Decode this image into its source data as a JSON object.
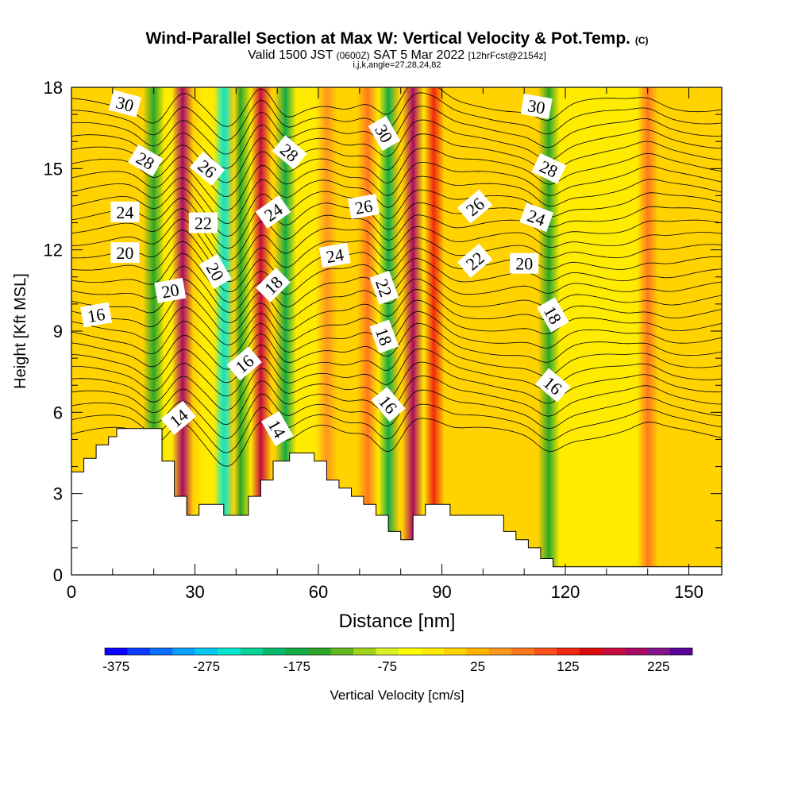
{
  "title": {
    "main": "Wind-Parallel Section at Max W: Vertical Velocity & Pot.Temp.",
    "copyright": "(C)",
    "valid_prefix": "Valid 1500 JST",
    "valid_utc": "(0600Z)",
    "valid_date": "SAT 5 Mar 2022",
    "forecast": "[12hrFcst@2154z]",
    "indices": "i,j,k,angle=27,28,24,82"
  },
  "chart_data": {
    "type": "heatmap",
    "xlabel": "Distance [nm]",
    "ylabel": "Height [Kft MSL]",
    "xlim": [
      0,
      158
    ],
    "ylim": [
      0,
      18
    ],
    "x_ticks": [
      0,
      30,
      60,
      90,
      120,
      150
    ],
    "y_ticks": [
      0,
      3,
      6,
      9,
      12,
      15,
      18
    ],
    "colorbar": {
      "label": "Vertical Velocity [cm/s]",
      "tick_labels": [
        "-375",
        "-275",
        "-175",
        "-75",
        "25",
        "125",
        "225"
      ],
      "colors": [
        "#0a00ff",
        "#0a3cff",
        "#0a6eff",
        "#0aa0ff",
        "#08c8f0",
        "#08e6d2",
        "#08d296",
        "#0ab96e",
        "#14aa46",
        "#2ba52a",
        "#64b41e",
        "#a0d21e",
        "#dcf028",
        "#ffff00",
        "#ffeb00",
        "#ffd200",
        "#ffb400",
        "#ff961e",
        "#ff781e",
        "#ff501e",
        "#f0280f",
        "#dc0a0a",
        "#c80a3c",
        "#aa0a64",
        "#82148c",
        "#5a0096"
      ]
    },
    "vertical_velocity_bands": [
      {
        "x": 20,
        "value": -150
      },
      {
        "x": 27,
        "value": 200
      },
      {
        "x": 32,
        "value": -20
      },
      {
        "x": 37,
        "value": -260
      },
      {
        "x": 41,
        "value": -160
      },
      {
        "x": 46,
        "value": 180
      },
      {
        "x": 52,
        "value": -170
      },
      {
        "x": 62,
        "value": 60
      },
      {
        "x": 72,
        "value": 75
      },
      {
        "x": 77,
        "value": -170
      },
      {
        "x": 83,
        "value": 200
      },
      {
        "x": 88,
        "value": 130
      },
      {
        "x": 116,
        "value": -150
      },
      {
        "x": 140,
        "value": 70
      }
    ],
    "terrain": [
      [
        0,
        3.8
      ],
      [
        3,
        3.8
      ],
      [
        3,
        4.3
      ],
      [
        6,
        4.3
      ],
      [
        6,
        4.8
      ],
      [
        9,
        4.8
      ],
      [
        9,
        5.1
      ],
      [
        11,
        5.1
      ],
      [
        11,
        5.4
      ],
      [
        22,
        5.4
      ],
      [
        22,
        4.2
      ],
      [
        25,
        4.2
      ],
      [
        25,
        2.9
      ],
      [
        28,
        2.9
      ],
      [
        28,
        2.2
      ],
      [
        31,
        2.2
      ],
      [
        31,
        2.6
      ],
      [
        37,
        2.6
      ],
      [
        37,
        2.2
      ],
      [
        43,
        2.2
      ],
      [
        43,
        2.9
      ],
      [
        46,
        2.9
      ],
      [
        46,
        3.5
      ],
      [
        49,
        3.5
      ],
      [
        49,
        4.2
      ],
      [
        53,
        4.2
      ],
      [
        53,
        4.5
      ],
      [
        59,
        4.5
      ],
      [
        59,
        4.2
      ],
      [
        62,
        4.2
      ],
      [
        62,
        3.5
      ],
      [
        65,
        3.5
      ],
      [
        65,
        3.2
      ],
      [
        68,
        3.2
      ],
      [
        68,
        2.9
      ],
      [
        71,
        2.9
      ],
      [
        71,
        2.6
      ],
      [
        74,
        2.6
      ],
      [
        74,
        2.2
      ],
      [
        77,
        2.2
      ],
      [
        77,
        1.6
      ],
      [
        80,
        1.6
      ],
      [
        80,
        1.3
      ],
      [
        83,
        1.3
      ],
      [
        83,
        2.2
      ],
      [
        86,
        2.2
      ],
      [
        86,
        2.6
      ],
      [
        92,
        2.6
      ],
      [
        92,
        2.2
      ],
      [
        105,
        2.2
      ],
      [
        105,
        1.6
      ],
      [
        108,
        1.6
      ],
      [
        108,
        1.3
      ],
      [
        111,
        1.3
      ],
      [
        111,
        1.0
      ],
      [
        114,
        1.0
      ],
      [
        114,
        0.6
      ],
      [
        117,
        0.6
      ],
      [
        117,
        0.3
      ],
      [
        158,
        0.3
      ]
    ],
    "theta_contour_labels": [
      {
        "x": 13,
        "y": 17.4,
        "label": "30",
        "angle": 15
      },
      {
        "x": 18,
        "y": 15.3,
        "label": "28",
        "angle": 30
      },
      {
        "x": 33,
        "y": 15.0,
        "label": "26",
        "angle": 40
      },
      {
        "x": 53,
        "y": 15.6,
        "label": "28",
        "angle": 40
      },
      {
        "x": 76,
        "y": 16.3,
        "label": "30",
        "angle": 60
      },
      {
        "x": 113,
        "y": 17.3,
        "label": "30",
        "angle": 10
      },
      {
        "x": 116,
        "y": 15.0,
        "label": "28",
        "angle": 25
      },
      {
        "x": 13,
        "y": 13.4,
        "label": "24",
        "angle": 0
      },
      {
        "x": 32,
        "y": 13.0,
        "label": "22",
        "angle": 0
      },
      {
        "x": 49,
        "y": 13.4,
        "label": "24",
        "angle": -35
      },
      {
        "x": 71,
        "y": 13.6,
        "label": "26",
        "angle": -10
      },
      {
        "x": 98,
        "y": 13.6,
        "label": "26",
        "angle": -40
      },
      {
        "x": 113,
        "y": 13.2,
        "label": "24",
        "angle": 20
      },
      {
        "x": 13,
        "y": 11.9,
        "label": "20",
        "angle": 0
      },
      {
        "x": 64,
        "y": 11.8,
        "label": "24",
        "angle": -10
      },
      {
        "x": 35,
        "y": 11.2,
        "label": "20",
        "angle": 60
      },
      {
        "x": 98,
        "y": 11.6,
        "label": "22",
        "angle": -40
      },
      {
        "x": 110,
        "y": 11.5,
        "label": "20",
        "angle": 0
      },
      {
        "x": 24,
        "y": 10.5,
        "label": "20",
        "angle": -10
      },
      {
        "x": 49,
        "y": 10.7,
        "label": "18",
        "angle": -45
      },
      {
        "x": 76,
        "y": 10.6,
        "label": "22",
        "angle": 70
      },
      {
        "x": 6,
        "y": 9.6,
        "label": "16",
        "angle": -10
      },
      {
        "x": 76,
        "y": 8.8,
        "label": "18",
        "angle": 70
      },
      {
        "x": 117,
        "y": 9.6,
        "label": "18",
        "angle": 60
      },
      {
        "x": 42,
        "y": 7.8,
        "label": "16",
        "angle": -40
      },
      {
        "x": 117,
        "y": 7.0,
        "label": "16",
        "angle": 40
      },
      {
        "x": 26,
        "y": 5.8,
        "label": "14",
        "angle": -40
      },
      {
        "x": 50,
        "y": 5.4,
        "label": "14",
        "angle": 60
      },
      {
        "x": 77,
        "y": 6.3,
        "label": "16",
        "angle": 50
      }
    ]
  }
}
